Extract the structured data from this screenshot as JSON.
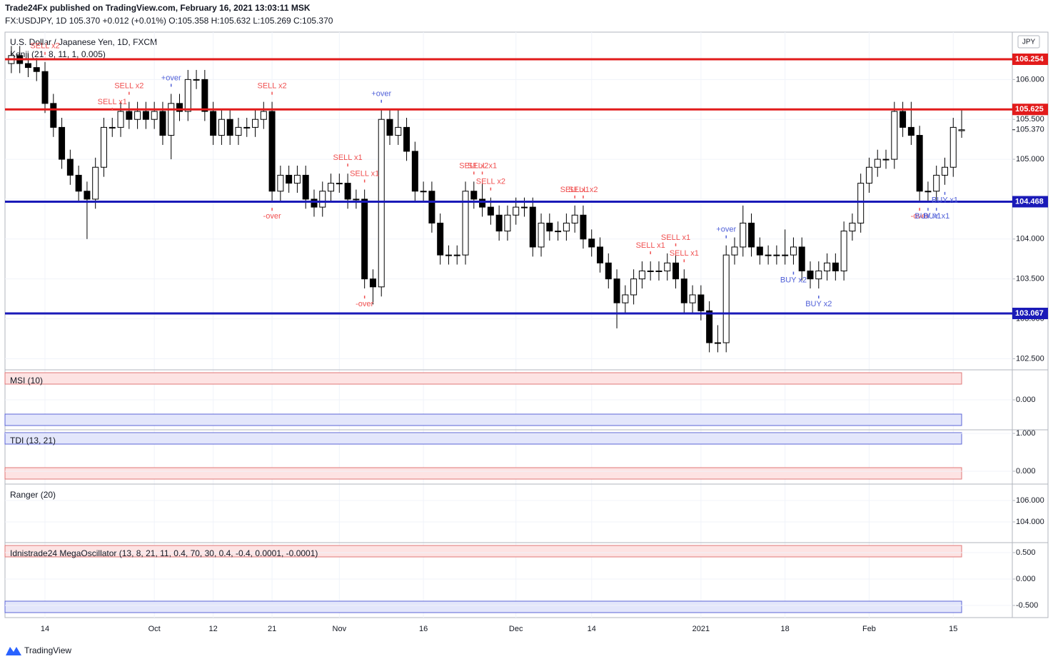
{
  "chart_data": {
    "type": "candlestick",
    "publisher": "Trade24Fx published on TradingView.com, February 16, 2021 13:03:11 MSK",
    "ticker": "FX:USDJPY, 1D 105.370 +0.012 (+0.01%) O:105.358 H:105.632 L:105.269 C:105.370",
    "title": "U.S. Dollar / Japanese Yen, 1D, FXCM",
    "indicator": "Kenji (21, 8, 11, 1, 0.005)",
    "currency": "JPY",
    "footer": "TradingView",
    "ylim": [
      102.369,
      106.594
    ],
    "yticks": [
      {
        "value": 102.5,
        "label": "102.500"
      },
      {
        "value": 103,
        "label": "103.000"
      },
      {
        "value": 103.5,
        "label": "103.500"
      },
      {
        "value": 104,
        "label": "104.000"
      },
      {
        "value": 104.5,
        "label": "104.500"
      },
      {
        "value": 105,
        "label": "105.000"
      },
      {
        "value": 105.5,
        "label": "105.500"
      },
      {
        "value": 106,
        "label": "106.000"
      }
    ],
    "xticks": [
      {
        "value": 4,
        "label": "14"
      },
      {
        "value": 17,
        "label": "Oct"
      },
      {
        "value": 24,
        "label": "12"
      },
      {
        "value": 31,
        "label": "21"
      },
      {
        "value": 39,
        "label": "Nov"
      },
      {
        "value": 49,
        "label": "16"
      },
      {
        "value": 60,
        "label": "Dec"
      },
      {
        "value": 69,
        "label": "14"
      },
      {
        "value": 82,
        "label": "2021"
      },
      {
        "value": 92,
        "label": "18"
      },
      {
        "value": 102,
        "label": "Feb"
      },
      {
        "value": 112,
        "label": "15"
      }
    ],
    "grid": true,
    "levels": [
      {
        "value": 106.254,
        "color": "#e21b1b"
      },
      {
        "value": 105.625,
        "color": "#e21b1b"
      },
      {
        "value": 104.468,
        "color": "#1a1ab8"
      },
      {
        "value": 103.067,
        "color": "#1a1ab8"
      }
    ],
    "last": {
      "value": 105.37,
      "label": "105.370"
    },
    "ohlc": [
      [
        106.2,
        106.42,
        106.08,
        106.3
      ],
      [
        106.3,
        106.42,
        106.08,
        106.2
      ],
      [
        106.2,
        106.32,
        106.03,
        106.15
      ],
      [
        106.15,
        106.27,
        105.98,
        106.1
      ],
      [
        106.1,
        106.22,
        105.58,
        105.7
      ],
      [
        105.7,
        105.82,
        105.28,
        105.4
      ],
      [
        105.4,
        105.52,
        104.88,
        105.0
      ],
      [
        105.0,
        105.12,
        104.68,
        104.8
      ],
      [
        104.8,
        104.92,
        104.48,
        104.6
      ],
      [
        104.6,
        104.72,
        104.0,
        104.5
      ],
      [
        104.5,
        105.02,
        104.38,
        104.9
      ],
      [
        104.9,
        105.52,
        104.78,
        105.4
      ],
      [
        105.4,
        105.52,
        105.28,
        105.4
      ],
      [
        105.4,
        105.72,
        105.28,
        105.6
      ],
      [
        105.6,
        105.72,
        105.38,
        105.5
      ],
      [
        105.5,
        105.72,
        105.38,
        105.6
      ],
      [
        105.6,
        105.72,
        105.38,
        105.5
      ],
      [
        105.5,
        105.72,
        105.38,
        105.6
      ],
      [
        105.6,
        105.72,
        105.18,
        105.3
      ],
      [
        105.3,
        105.82,
        105.0,
        105.7
      ],
      [
        105.7,
        105.82,
        105.48,
        105.6
      ],
      [
        105.6,
        106.12,
        105.48,
        106.0
      ],
      [
        106.0,
        106.12,
        105.88,
        106.0
      ],
      [
        106.0,
        106.12,
        105.48,
        105.6
      ],
      [
        105.6,
        105.72,
        105.18,
        105.3
      ],
      [
        105.3,
        105.62,
        105.18,
        105.5
      ],
      [
        105.5,
        105.62,
        105.18,
        105.3
      ],
      [
        105.3,
        105.52,
        105.18,
        105.4
      ],
      [
        105.4,
        105.52,
        105.28,
        105.4
      ],
      [
        105.4,
        105.62,
        105.28,
        105.5
      ],
      [
        105.5,
        105.72,
        105.38,
        105.6
      ],
      [
        105.6,
        105.72,
        104.48,
        104.6
      ],
      [
        104.6,
        104.92,
        104.48,
        104.8
      ],
      [
        104.8,
        104.92,
        104.58,
        104.7
      ],
      [
        104.7,
        104.92,
        104.58,
        104.8
      ],
      [
        104.8,
        104.92,
        104.38,
        104.5
      ],
      [
        104.5,
        104.62,
        104.28,
        104.4
      ],
      [
        104.4,
        104.72,
        104.28,
        104.6
      ],
      [
        104.6,
        104.82,
        104.48,
        104.7
      ],
      [
        104.7,
        104.82,
        104.58,
        104.7
      ],
      [
        104.7,
        104.82,
        104.38,
        104.5
      ],
      [
        104.5,
        104.62,
        104.38,
        104.5
      ],
      [
        104.5,
        104.62,
        103.38,
        103.5
      ],
      [
        103.5,
        103.62,
        103.18,
        103.4
      ],
      [
        103.4,
        105.62,
        103.28,
        105.5
      ],
      [
        105.5,
        105.62,
        105.18,
        105.3
      ],
      [
        105.3,
        105.62,
        105.18,
        105.4
      ],
      [
        105.4,
        105.52,
        104.98,
        105.1
      ],
      [
        105.1,
        105.22,
        104.48,
        104.6
      ],
      [
        104.6,
        104.72,
        104.48,
        104.6
      ],
      [
        104.6,
        104.72,
        104.08,
        104.2
      ],
      [
        104.2,
        104.32,
        103.68,
        103.8
      ],
      [
        103.8,
        103.92,
        103.68,
        103.8
      ],
      [
        103.8,
        103.92,
        103.68,
        103.8
      ],
      [
        103.8,
        104.72,
        103.68,
        104.6
      ],
      [
        104.6,
        104.72,
        104.38,
        104.5
      ],
      [
        104.5,
        104.72,
        104.28,
        104.4
      ],
      [
        104.4,
        104.52,
        104.18,
        104.3
      ],
      [
        104.3,
        104.42,
        103.98,
        104.1
      ],
      [
        104.1,
        104.42,
        103.98,
        104.3
      ],
      [
        104.3,
        104.52,
        104.18,
        104.4
      ],
      [
        104.4,
        104.52,
        104.28,
        104.4
      ],
      [
        104.4,
        104.52,
        103.78,
        103.9
      ],
      [
        103.9,
        104.32,
        103.78,
        104.2
      ],
      [
        104.2,
        104.32,
        103.98,
        104.1
      ],
      [
        104.1,
        104.22,
        103.98,
        104.1
      ],
      [
        104.1,
        104.32,
        103.98,
        104.2
      ],
      [
        104.2,
        104.42,
        104.08,
        104.3
      ],
      [
        104.3,
        104.42,
        103.88,
        104.0
      ],
      [
        104.0,
        104.12,
        103.78,
        103.9
      ],
      [
        103.9,
        104.02,
        103.58,
        103.7
      ],
      [
        103.7,
        103.82,
        103.38,
        103.5
      ],
      [
        103.5,
        103.62,
        102.88,
        103.2
      ],
      [
        103.2,
        103.42,
        103.08,
        103.3
      ],
      [
        103.3,
        103.62,
        103.18,
        103.5
      ],
      [
        103.5,
        103.72,
        103.38,
        103.6
      ],
      [
        103.6,
        103.72,
        103.48,
        103.6
      ],
      [
        103.6,
        103.72,
        103.48,
        103.6
      ],
      [
        103.6,
        103.82,
        103.48,
        103.7
      ],
      [
        103.7,
        103.82,
        103.38,
        103.5
      ],
      [
        103.5,
        103.62,
        103.08,
        103.2
      ],
      [
        103.2,
        103.42,
        103.08,
        103.3
      ],
      [
        103.3,
        103.42,
        102.98,
        103.1
      ],
      [
        103.1,
        103.22,
        102.58,
        102.7
      ],
      [
        102.7,
        102.92,
        102.58,
        102.7
      ],
      [
        102.7,
        103.92,
        102.58,
        103.8
      ],
      [
        103.8,
        104.02,
        103.68,
        103.9
      ],
      [
        103.9,
        104.42,
        103.78,
        104.2
      ],
      [
        104.2,
        104.32,
        103.78,
        103.9
      ],
      [
        103.9,
        104.02,
        103.68,
        103.8
      ],
      [
        103.8,
        103.92,
        103.68,
        103.8
      ],
      [
        103.8,
        103.92,
        103.68,
        103.8
      ],
      [
        103.8,
        104.12,
        103.68,
        103.8
      ],
      [
        103.8,
        104.02,
        103.68,
        103.9
      ],
      [
        103.9,
        104.02,
        103.48,
        103.6
      ],
      [
        103.6,
        103.72,
        103.38,
        103.5
      ],
      [
        103.5,
        103.72,
        103.38,
        103.6
      ],
      [
        103.6,
        103.82,
        103.48,
        103.7
      ],
      [
        103.7,
        103.82,
        103.48,
        103.6
      ],
      [
        103.6,
        104.22,
        103.48,
        104.1
      ],
      [
        104.1,
        104.32,
        103.98,
        104.2
      ],
      [
        104.2,
        104.82,
        104.08,
        104.7
      ],
      [
        104.7,
        105.02,
        104.58,
        104.9
      ],
      [
        104.9,
        105.12,
        104.78,
        105.0
      ],
      [
        105.0,
        105.12,
        104.88,
        105.0
      ],
      [
        105.0,
        105.72,
        104.88,
        105.6
      ],
      [
        105.6,
        105.72,
        105.28,
        105.4
      ],
      [
        105.4,
        105.72,
        105.18,
        105.3
      ],
      [
        105.3,
        105.42,
        104.48,
        104.6
      ],
      [
        104.6,
        104.72,
        104.48,
        104.6
      ],
      [
        104.6,
        104.92,
        104.48,
        104.8
      ],
      [
        104.8,
        105.02,
        104.68,
        104.9
      ],
      [
        104.9,
        105.52,
        104.78,
        105.4
      ],
      [
        105.358,
        105.632,
        105.269,
        105.37
      ]
    ],
    "signals": [
      {
        "text": "SELL x2",
        "index": 4,
        "side": "above",
        "color": "#f05050"
      },
      {
        "text": "SELL x1",
        "index": 12,
        "side": "above",
        "color": "#f05050"
      },
      {
        "text": "SELL x2",
        "index": 14,
        "side": "above",
        "color": "#f05050"
      },
      {
        "text": "+over",
        "index": 19,
        "side": "above",
        "color": "#5060d8"
      },
      {
        "text": "SELL x2",
        "index": 31,
        "side": "above",
        "color": "#f05050"
      },
      {
        "text": "-over",
        "index": 31,
        "side": "below",
        "color": "#f05050"
      },
      {
        "text": "SELL x1",
        "index": 40,
        "side": "above",
        "color": "#f05050"
      },
      {
        "text": "SELL x1",
        "index": 42,
        "side": "above",
        "color": "#f05050"
      },
      {
        "text": "-over",
        "index": 42,
        "side": "below",
        "color": "#f05050"
      },
      {
        "text": "+over",
        "index": 44,
        "side": "above",
        "color": "#5060d8"
      },
      {
        "text": "SELL x2",
        "index": 55,
        "side": "above",
        "color": "#f05050"
      },
      {
        "text": "SELL x1",
        "index": 56,
        "side": "above",
        "color": "#f05050"
      },
      {
        "text": "SELL x2",
        "index": 57,
        "side": "above",
        "color": "#f05050"
      },
      {
        "text": "SELL x1",
        "index": 67,
        "side": "above",
        "color": "#f05050"
      },
      {
        "text": "SELL x2",
        "index": 68,
        "side": "above",
        "color": "#f05050"
      },
      {
        "text": "SELL x1",
        "index": 76,
        "side": "above",
        "color": "#f05050"
      },
      {
        "text": "SELL x1",
        "index": 79,
        "side": "above",
        "color": "#f05050"
      },
      {
        "text": "SELL x1",
        "index": 80,
        "side": "above",
        "color": "#f05050"
      },
      {
        "text": "+over",
        "index": 85,
        "side": "above",
        "color": "#5060d8"
      },
      {
        "text": "BUY x2",
        "index": 93,
        "side": "below",
        "color": "#5060d8"
      },
      {
        "text": "BUY x2",
        "index": 96,
        "side": "below",
        "color": "#5060d8"
      },
      {
        "text": "-over",
        "index": 108,
        "side": "below",
        "color": "#f05050"
      },
      {
        "text": "BUY x1",
        "index": 109,
        "side": "below",
        "color": "#5060d8"
      },
      {
        "text": "BUY x1",
        "index": 110,
        "side": "below",
        "color": "#5060d8"
      },
      {
        "text": "BUY x1",
        "index": 111,
        "side": "below",
        "color": "#5060d8"
      }
    ],
    "panes": [
      {
        "title": "MSI (10)",
        "ylim": [
          -0.5,
          0.5
        ],
        "yticks": [
          {
            "value": 0,
            "label": "0.000"
          }
        ]
      },
      {
        "title": "TDI (13, 21)",
        "ylim": [
          -0.283,
          1.057
        ],
        "yticks": [
          {
            "value": 1,
            "label": "1.000"
          },
          {
            "value": 0,
            "label": "0.000"
          }
        ]
      },
      {
        "title": "Ranger (20)",
        "ylim": [
          102.267,
          107.4
        ],
        "yticks": [
          {
            "value": 106,
            "label": "106.000"
          },
          {
            "value": 104,
            "label": "104.000"
          }
        ]
      },
      {
        "title": "Idnistrade24 MegaOscillator (13, 8, 21, 11, 0.4, 70, 30, 0.4, -0.4, 0.0001, -0.0001)",
        "ylim": [
          -0.689,
          0.662
        ],
        "yticks": [
          {
            "value": 0.5,
            "label": "0.500"
          },
          {
            "value": 0,
            "label": "0.000"
          },
          {
            "value": -0.5,
            "label": "-0.500"
          }
        ]
      }
    ]
  }
}
